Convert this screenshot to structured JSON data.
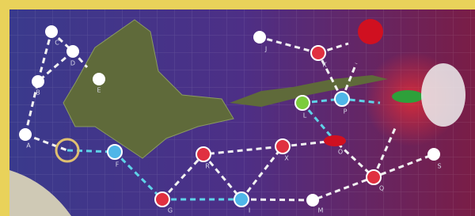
{
  "nodes": [
    {
      "label": "C"
    },
    {
      "label": "D"
    },
    {
      "label": "B"
    },
    {
      "label": "E"
    },
    {
      "label": "A"
    },
    {
      "label": "F"
    },
    {
      "label": "G"
    },
    {
      "label": "R"
    },
    {
      "label": "I"
    },
    {
      "label": "X"
    },
    {
      "label": "M"
    },
    {
      "label": "O"
    },
    {
      "label": "Q"
    },
    {
      "label": "S"
    },
    {
      "label": "L"
    },
    {
      "label": "P"
    },
    {
      "label": "K"
    },
    {
      "label": "J"
    }
  ]
}
